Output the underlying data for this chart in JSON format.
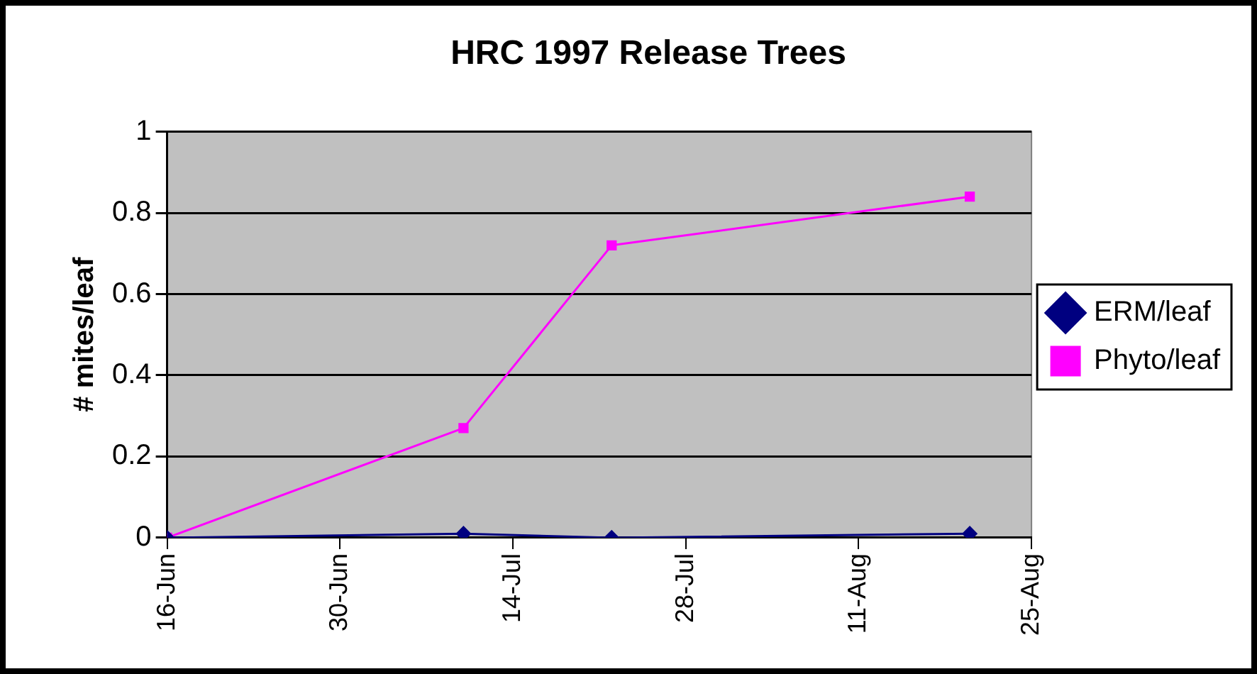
{
  "chart_data": {
    "type": "line",
    "title": "HRC 1997 Release Trees",
    "ylabel": "# mites/leaf",
    "series": [
      {
        "name": "ERM/leaf",
        "color": "#000080",
        "marker": "diamond",
        "x": [
          "--06-16",
          "--07-10",
          "--07-22",
          "--08-20"
        ],
        "values": [
          0,
          0.01,
          0,
          0.01
        ]
      },
      {
        "name": "Phyto/leaf",
        "color": "#ff00ff",
        "marker": "square",
        "x": [
          "--06-16",
          "--07-10",
          "--07-22",
          "--08-20"
        ],
        "values": [
          0,
          0.27,
          0.72,
          0.84
        ]
      }
    ],
    "xlim": [
      "--06-16",
      "--08-25"
    ],
    "xticks": [
      {
        "value": "--06-16",
        "label": "16-Jun"
      },
      {
        "value": "--06-30",
        "label": "30-Jun"
      },
      {
        "value": "--07-14",
        "label": "14-Jul"
      },
      {
        "value": "--07-28",
        "label": "28-Jul"
      },
      {
        "value": "--08-11",
        "label": "11-Aug"
      },
      {
        "value": "--08-25",
        "label": "25-Aug"
      }
    ],
    "ylim": [
      0,
      1
    ],
    "yticks": [
      0,
      0.2,
      0.4,
      0.6,
      0.8,
      1
    ],
    "grid": "y",
    "legend": "right",
    "line_style": "solid"
  }
}
